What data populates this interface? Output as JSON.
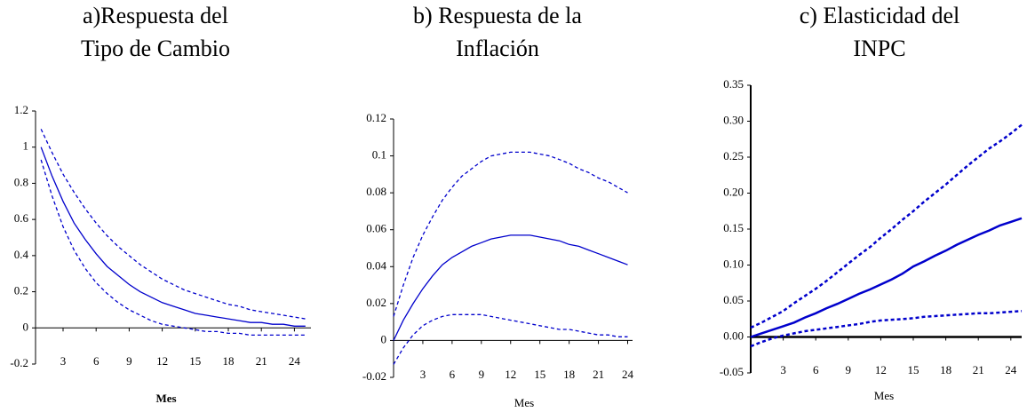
{
  "chart_data": [
    {
      "type": "line",
      "title": [
        "a)Respuesta del",
        "Tipo de Cambio"
      ],
      "xlabel": "Mes",
      "xlabel_bold": true,
      "x": [
        1,
        2,
        3,
        4,
        5,
        6,
        7,
        8,
        9,
        10,
        11,
        12,
        13,
        14,
        15,
        16,
        17,
        18,
        19,
        20,
        21,
        22,
        23,
        24,
        25
      ],
      "series": [
        {
          "color": "#0000cc",
          "dashed": false,
          "values": [
            1,
            0.84,
            0.7,
            0.58,
            0.49,
            0.41,
            0.34,
            0.29,
            0.24,
            0.2,
            0.17,
            0.14,
            0.12,
            0.1,
            0.08,
            0.07,
            0.06,
            0.05,
            0.04,
            0.03,
            0.03,
            0.02,
            0.02,
            0.01,
            0.01
          ]
        },
        {
          "color": "#0000cc",
          "dashed": true,
          "values": [
            1.1,
            0.97,
            0.85,
            0.75,
            0.66,
            0.58,
            0.51,
            0.45,
            0.4,
            0.35,
            0.31,
            0.27,
            0.24,
            0.21,
            0.19,
            0.17,
            0.15,
            0.13,
            0.12,
            0.1,
            0.09,
            0.08,
            0.07,
            0.06,
            0.05
          ]
        },
        {
          "color": "#0000cc",
          "dashed": true,
          "values": [
            0.93,
            0.73,
            0.56,
            0.43,
            0.33,
            0.25,
            0.19,
            0.14,
            0.1,
            0.07,
            0.04,
            0.02,
            0.01,
            0,
            -0.01,
            -0.02,
            -0.02,
            -0.03,
            -0.03,
            -0.04,
            -0.04,
            -0.04,
            -0.04,
            -0.04,
            -0.04
          ]
        }
      ],
      "xlim": [
        0.5,
        25.5
      ],
      "xticks": [
        3,
        6,
        9,
        12,
        15,
        18,
        21,
        24
      ],
      "ylim": [
        -0.2,
        1.2
      ],
      "yticks": [
        1.2,
        1,
        0.8,
        0.6,
        0.4,
        0.2,
        0,
        -0.2
      ],
      "grid": false
    },
    {
      "type": "line",
      "title": [
        "b) Respuesta de la",
        "Inflación"
      ],
      "xlabel": "Mes",
      "xlabel_bold": false,
      "x": [
        0,
        1,
        2,
        3,
        4,
        5,
        6,
        7,
        8,
        9,
        10,
        11,
        12,
        13,
        14,
        15,
        16,
        17,
        18,
        19,
        20,
        21,
        22,
        23,
        24
      ],
      "series": [
        {
          "color": "#0000cc",
          "dashed": false,
          "values": [
            0,
            0.011,
            0.02,
            0.028,
            0.035,
            0.041,
            0.045,
            0.048,
            0.051,
            0.053,
            0.055,
            0.056,
            0.057,
            0.057,
            0.057,
            0.056,
            0.055,
            0.054,
            0.052,
            0.051,
            0.049,
            0.047,
            0.045,
            0.043,
            0.041
          ]
        },
        {
          "color": "#0000cc",
          "dashed": true,
          "values": [
            0.013,
            0.03,
            0.045,
            0.057,
            0.067,
            0.076,
            0.083,
            0.089,
            0.093,
            0.097,
            0.1,
            0.101,
            0.102,
            0.102,
            0.102,
            0.101,
            0.1,
            0.098,
            0.096,
            0.093,
            0.091,
            0.088,
            0.086,
            0.083,
            0.08
          ]
        },
        {
          "color": "#0000cc",
          "dashed": true,
          "values": [
            -0.013,
            -0.004,
            0.003,
            0.008,
            0.011,
            0.013,
            0.014,
            0.014,
            0.014,
            0.014,
            0.013,
            0.012,
            0.011,
            0.01,
            0.009,
            0.008,
            0.007,
            0.006,
            0.006,
            0.005,
            0.004,
            0.003,
            0.003,
            0.002,
            0.002
          ]
        }
      ],
      "xlim": [
        0,
        24.5
      ],
      "xticks": [
        3,
        6,
        9,
        12,
        15,
        18,
        21,
        24
      ],
      "ylim": [
        -0.02,
        0.12
      ],
      "yticks": [
        0.12,
        0.1,
        0.08,
        0.06,
        0.04,
        0.02,
        0,
        -0.02
      ],
      "grid": false
    },
    {
      "type": "line",
      "title": [
        "c) Elasticidad del",
        "INPC"
      ],
      "xlabel": "Mes",
      "xlabel_bold": false,
      "x": [
        0,
        1,
        2,
        3,
        4,
        5,
        6,
        7,
        8,
        9,
        10,
        11,
        12,
        13,
        14,
        15,
        16,
        17,
        18,
        19,
        20,
        21,
        22,
        23,
        24,
        25
      ],
      "series": [
        {
          "color": "#0000cc",
          "dashed": false,
          "values": [
            0,
            0.005,
            0.01,
            0.015,
            0.02,
            0.027,
            0.033,
            0.04,
            0.046,
            0.053,
            0.06,
            0.066,
            0.073,
            0.08,
            0.088,
            0.098,
            0.105,
            0.113,
            0.12,
            0.128,
            0.135,
            0.142,
            0.148,
            0.155,
            0.16,
            0.165
          ]
        },
        {
          "color": "#0000cc",
          "dashed": true,
          "values": [
            0.013,
            0.02,
            0.028,
            0.036,
            0.047,
            0.057,
            0.067,
            0.078,
            0.09,
            0.102,
            0.114,
            0.125,
            0.138,
            0.15,
            0.163,
            0.175,
            0.188,
            0.2,
            0.212,
            0.225,
            0.238,
            0.25,
            0.262,
            0.272,
            0.283,
            0.295
          ]
        },
        {
          "color": "#0000cc",
          "dashed": true,
          "values": [
            -0.013,
            -0.007,
            -0.002,
            0.002,
            0.005,
            0.008,
            0.01,
            0.012,
            0.014,
            0.016,
            0.018,
            0.021,
            0.023,
            0.024,
            0.025,
            0.026,
            0.028,
            0.029,
            0.03,
            0.031,
            0.032,
            0.033,
            0.033,
            0.034,
            0.035,
            0.036
          ]
        }
      ],
      "xlim": [
        0,
        25
      ],
      "xticks": [
        3,
        6,
        9,
        12,
        15,
        18,
        21,
        24
      ],
      "ylim": [
        -0.05,
        0.35
      ],
      "yticks": [
        0.35,
        {
          "value": 0.3,
          "label": "0.30"
        },
        0.25,
        {
          "value": 0.2,
          "label": "0.20"
        },
        0.15,
        {
          "value": 0.1,
          "label": "0.10"
        },
        0.05,
        {
          "value": 0,
          "label": "0.00"
        },
        -0.05
      ],
      "grid": false,
      "thick": true
    }
  ]
}
